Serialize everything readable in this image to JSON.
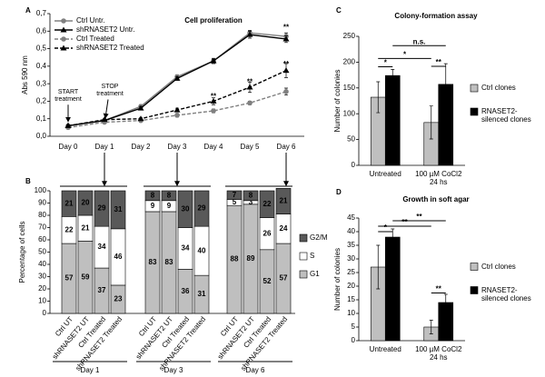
{
  "chart_data": [
    {
      "panel": "A",
      "type": "line",
      "title": "Cell proliferation",
      "ylabel": "Abs 590 nm",
      "categories": [
        "Day 0",
        "Day 1",
        "Day 2",
        "Day 3",
        "Day 4",
        "Day 5",
        "Day 6"
      ],
      "series": [
        {
          "name": "Ctrl Untr.",
          "color": "#808080",
          "marker": "circle",
          "dashed": false,
          "values": [
            0.06,
            0.09,
            0.17,
            0.34,
            0.43,
            0.59,
            0.57
          ],
          "errors": [
            0.005,
            0.005,
            0.01,
            0.01,
            0.015,
            0.015,
            0.02
          ]
        },
        {
          "name": "shRNASET2 Untr.",
          "color": "#000000",
          "marker": "triangle",
          "dashed": false,
          "values": [
            0.06,
            0.09,
            0.16,
            0.33,
            0.43,
            0.58,
            0.555
          ],
          "errors": [
            0.005,
            0.005,
            0.01,
            0.01,
            0.01,
            0.02,
            0.02
          ]
        },
        {
          "name": "Ctrl Treated",
          "color": "#808080",
          "marker": "circle",
          "dashed": true,
          "values": [
            0.05,
            0.08,
            0.09,
            0.12,
            0.145,
            0.19,
            0.255
          ],
          "errors": [
            0.005,
            0.005,
            0.005,
            0.01,
            0.01,
            0.01,
            0.02
          ]
        },
        {
          "name": "shRNASET2 Treated",
          "color": "#000000",
          "marker": "triangle",
          "dashed": true,
          "values": [
            0.06,
            0.095,
            0.1,
            0.15,
            0.2,
            0.28,
            0.375
          ],
          "errors": [
            0.005,
            0.005,
            0.005,
            0.01,
            0.02,
            0.03,
            0.04
          ]
        }
      ],
      "ylim": [
        0,
        0.7
      ],
      "yticks": [
        {
          "value": 0,
          "label": "0,0"
        },
        {
          "value": 0.1,
          "label": "0,1"
        },
        {
          "value": 0.2,
          "label": "0,2"
        },
        {
          "value": 0.3,
          "label": "0,3"
        },
        {
          "value": 0.4,
          "label": "0,4"
        },
        {
          "value": 0.5,
          "label": "0,5"
        },
        {
          "value": 0.6,
          "label": "0,6"
        },
        {
          "value": 0.7,
          "label": "0,7"
        }
      ],
      "grid": false,
      "legend": "upper left",
      "annotations": [
        "START treatment",
        "STOP treatment",
        "**",
        "**",
        "**",
        "**"
      ]
    },
    {
      "panel": "B",
      "type": "stacked_bar",
      "ylabel": "Percentage of cells",
      "groups": [
        "Day 1",
        "Day 3",
        "Day 6"
      ],
      "categories": [
        "Ctrl UT",
        "shRNASET2 UT",
        "Ctrl Treated",
        "shRNASET2 Treated",
        "Ctrl UT",
        "shRNASET2 UT",
        "Ctrl Treated",
        "shRNASET2 Treated",
        "Ctrl UT",
        "shRNASET2 UT",
        "Ctrl Treated",
        "shRNASET2 Treated"
      ],
      "series": [
        {
          "name": "G1",
          "color": "#bfbfbf",
          "values": [
            57,
            59,
            37,
            23,
            83,
            83,
            36,
            31,
            88,
            89,
            52,
            57
          ]
        },
        {
          "name": "S",
          "color": "#ffffff",
          "values": [
            22,
            21,
            34,
            46,
            9,
            9,
            34,
            40,
            5,
            3,
            26,
            24
          ]
        },
        {
          "name": "G2/M",
          "color": "#595959",
          "values": [
            21,
            20,
            29,
            31,
            8,
            8,
            30,
            29,
            7,
            8,
            22,
            21
          ]
        }
      ],
      "ylim": [
        0,
        100
      ],
      "yticks": [
        0,
        10,
        20,
        30,
        40,
        50,
        60,
        70,
        80,
        90,
        100
      ],
      "grid": false,
      "legend": "right"
    },
    {
      "panel": "C",
      "type": "bar",
      "title": "Colony-formation assay",
      "ylabel": "Number of colonies",
      "categories": [
        "Untreated",
        "100 µM CoCl2 24 hs"
      ],
      "series": [
        {
          "name": "Ctrl clones",
          "color": "#bfbfbf",
          "values": [
            132,
            83
          ],
          "errors": [
            30,
            32
          ]
        },
        {
          "name": "RNASET2-silenced clones",
          "color": "#000000",
          "values": [
            174,
            157
          ],
          "errors": [
            12,
            40
          ]
        }
      ],
      "ylim": [
        0,
        250
      ],
      "yticks": [
        0,
        50,
        100,
        150,
        200,
        250
      ],
      "grid": false,
      "legend": "right",
      "annotations": [
        "*",
        "*",
        "**",
        "n.s."
      ]
    },
    {
      "panel": "D",
      "type": "bar",
      "title": "Growth in soft agar",
      "ylabel": "Number of colonies",
      "categories": [
        "Untreated",
        "100 µM CoCl2 24 hs"
      ],
      "series": [
        {
          "name": "Ctrl clones",
          "color": "#bfbfbf",
          "values": [
            27,
            5
          ],
          "errors": [
            8,
            2.5
          ]
        },
        {
          "name": "RNASET2-silenced clones",
          "color": "#000000",
          "values": [
            38,
            14
          ],
          "errors": [
            3,
            3
          ]
        }
      ],
      "ylim": [
        0,
        45
      ],
      "yticks": [
        0,
        5,
        10,
        15,
        20,
        25,
        30,
        35,
        40,
        45
      ],
      "grid": false,
      "legend": "right",
      "annotations": [
        "*",
        "**",
        "**",
        "**"
      ]
    }
  ]
}
